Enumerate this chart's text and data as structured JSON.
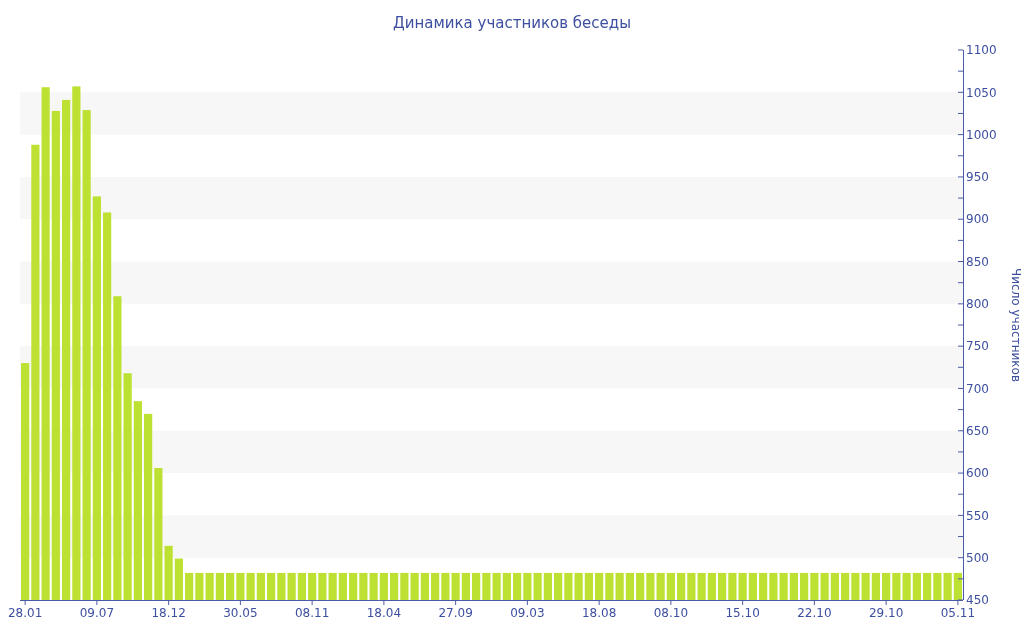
{
  "chart_data": {
    "type": "bar",
    "title": "Динамика участников беседы",
    "ylabel": "Число участников",
    "categories": [
      "28.01",
      null,
      null,
      null,
      null,
      null,
      null,
      "09.07",
      null,
      null,
      null,
      null,
      null,
      null,
      "18.12",
      null,
      null,
      null,
      null,
      null,
      null,
      "30.05",
      null,
      null,
      null,
      null,
      null,
      null,
      "08.11",
      null,
      null,
      null,
      null,
      null,
      null,
      "18.04",
      null,
      null,
      null,
      null,
      null,
      null,
      "27.09",
      null,
      null,
      null,
      null,
      null,
      null,
      "09.03",
      null,
      null,
      null,
      null,
      null,
      null,
      "18.08",
      null,
      null,
      null,
      null,
      null,
      null,
      "08.10",
      null,
      null,
      null,
      null,
      null,
      null,
      "15.10",
      null,
      null,
      null,
      null,
      null,
      null,
      "22.10",
      null,
      null,
      null,
      null,
      null,
      null,
      "29.10",
      null,
      null,
      null,
      null,
      null,
      null,
      "05.11"
    ],
    "values": [
      730,
      988,
      1056,
      1028,
      1041,
      1057,
      1029,
      927,
      908,
      809,
      718,
      685,
      670,
      606,
      514,
      499,
      482,
      482,
      482,
      482,
      482,
      482,
      482,
      482,
      482,
      482,
      482,
      482,
      482,
      482,
      482,
      482,
      482,
      482,
      482,
      482,
      482,
      482,
      482,
      482,
      482,
      482,
      482,
      482,
      482,
      482,
      482,
      482,
      482,
      482,
      482,
      482,
      482,
      482,
      482,
      482,
      482,
      482,
      482,
      482,
      482,
      482,
      482,
      482,
      482,
      482,
      482,
      482,
      482,
      482,
      482,
      482,
      482,
      482,
      482,
      482,
      482,
      482,
      482,
      482,
      482,
      482,
      482,
      482,
      482,
      482,
      482,
      482,
      482,
      482,
      482,
      482
    ],
    "color": "#bde132",
    "ylim": [
      450,
      1100
    ],
    "yticks": [
      450,
      {
        "value": 475,
        "label": null
      },
      500,
      {
        "value": 525,
        "label": null
      },
      550,
      {
        "value": 575,
        "label": null
      },
      600,
      {
        "value": 625,
        "label": null
      },
      650,
      {
        "value": 675,
        "label": null
      },
      700,
      {
        "value": 725,
        "label": null
      },
      750,
      {
        "value": 775,
        "label": null
      },
      800,
      {
        "value": 825,
        "label": null
      },
      850,
      {
        "value": 875,
        "label": null
      },
      900,
      {
        "value": 925,
        "label": null
      },
      950,
      {
        "value": 975,
        "label": null
      },
      1000,
      {
        "value": 1025,
        "label": null
      },
      1050,
      {
        "value": 1075,
        "label": null
      },
      1100
    ],
    "bands": [
      {
        "axis": "y",
        "from": 500,
        "to": 550,
        "color": "#f7f7f7"
      },
      {
        "axis": "y",
        "from": 600,
        "to": 650,
        "color": "#f7f7f7"
      },
      {
        "axis": "y",
        "from": 700,
        "to": 750,
        "color": "#f7f7f7"
      },
      {
        "axis": "y",
        "from": 800,
        "to": 850,
        "color": "#f7f7f7"
      },
      {
        "axis": "y",
        "from": 900,
        "to": 950,
        "color": "#f7f7f7"
      },
      {
        "axis": "y",
        "from": 1000,
        "to": 1050,
        "color": "#f7f7f7"
      }
    ]
  }
}
